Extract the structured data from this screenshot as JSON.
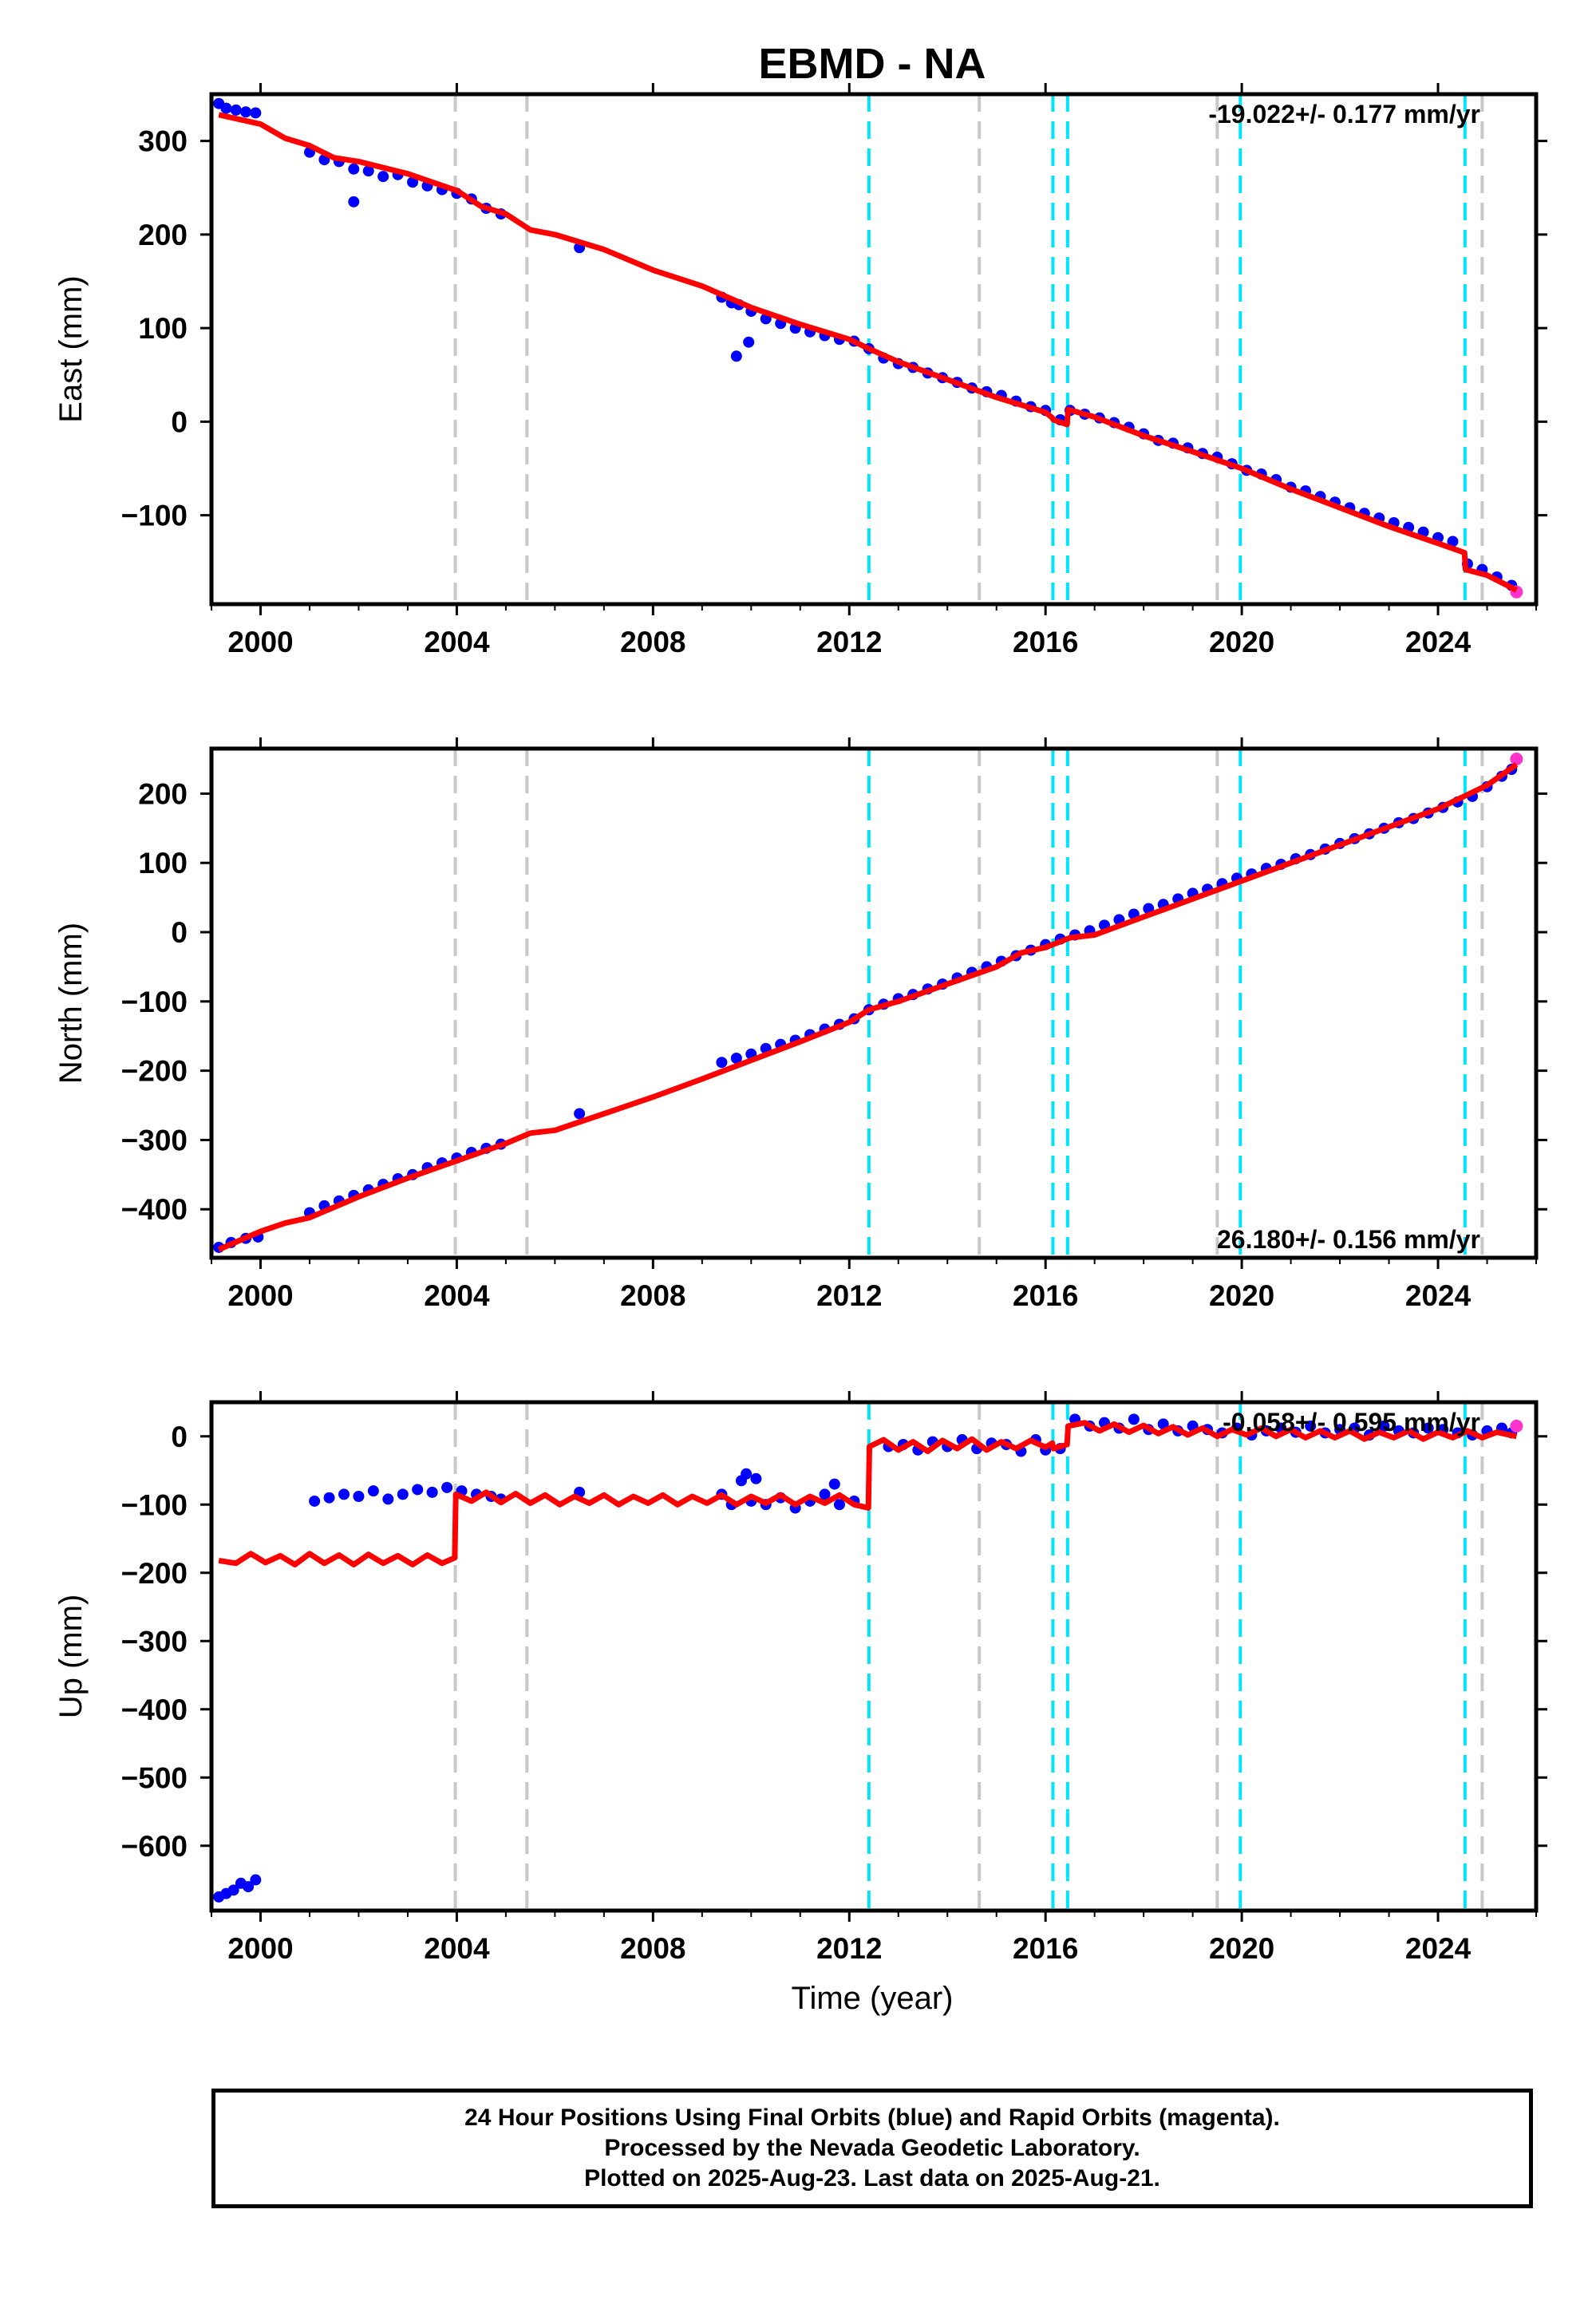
{
  "title": "EBMD - NA",
  "xlabel": "Time (year)",
  "colors": {
    "final_orbits": "#0000ff",
    "rapid_orbits": "#ff33cc",
    "model_fit": "#ff0000",
    "equipment_change": "#00e5ff",
    "other_offset": "#c8c8c8"
  },
  "chart_data": [
    {
      "type": "scatter",
      "panel": "east",
      "ylabel": "East (mm)",
      "xlim": [
        1999.0,
        2026.0
      ],
      "ylim": [
        -195,
        350
      ],
      "x_ticks": [
        2000,
        2004,
        2008,
        2012,
        2016,
        2020,
        2024
      ],
      "y_ticks": [
        300,
        200,
        100,
        0,
        -100
      ],
      "y_tick_labels": [
        "300",
        "200",
        "100",
        "0",
        "−100"
      ],
      "rate_annotation": "-19.022+/- 0.177 mm/yr",
      "rate_position": "top-right",
      "equipment_changes": [
        2012.4,
        2016.15,
        2016.45,
        2019.97,
        2024.55
      ],
      "other_offsets": [
        2003.97,
        2005.43,
        2014.65,
        2019.5,
        2024.9
      ],
      "series": [
        {
          "name": "Final Orbits",
          "color": "#0000ff",
          "x": [
            1999.15,
            1999.3,
            1999.5,
            1999.7,
            1999.9,
            2001.0,
            2001.3,
            2001.6,
            2001.9,
            2002.2,
            2002.5,
            2002.8,
            2003.1,
            2003.4,
            2003.7,
            2004.0,
            2004.3,
            2004.6,
            2004.9,
            2006.5,
            2009.4,
            2009.6,
            2009.75,
            2010.0,
            2010.3,
            2010.6,
            2010.9,
            2011.2,
            2011.5,
            2011.8,
            2012.1,
            2012.4,
            2012.7,
            2013.0,
            2013.3,
            2013.6,
            2013.9,
            2014.2,
            2014.5,
            2014.8,
            2015.1,
            2015.4,
            2015.7,
            2016.0,
            2016.3,
            2016.5,
            2016.8,
            2017.1,
            2017.4,
            2017.7,
            2018.0,
            2018.3,
            2018.6,
            2018.9,
            2019.2,
            2019.5,
            2019.8,
            2020.1,
            2020.4,
            2020.7,
            2021.0,
            2021.3,
            2021.6,
            2021.9,
            2022.2,
            2022.5,
            2022.8,
            2023.1,
            2023.4,
            2023.7,
            2024.0,
            2024.3,
            2024.6,
            2024.9,
            2025.2,
            2025.5
          ],
          "y": [
            340,
            335,
            333,
            331,
            330,
            288,
            280,
            278,
            270,
            268,
            262,
            264,
            256,
            252,
            248,
            244,
            238,
            228,
            222,
            186,
            133,
            127,
            125,
            118,
            110,
            105,
            100,
            96,
            92,
            88,
            86,
            78,
            68,
            62,
            58,
            52,
            47,
            42,
            36,
            32,
            28,
            22,
            16,
            12,
            2,
            12,
            8,
            4,
            -1,
            -6,
            -13,
            -20,
            -23,
            -28,
            -34,
            -38,
            -45,
            -52,
            -56,
            -62,
            -70,
            -74,
            -80,
            -86,
            -92,
            -98,
            -103,
            -108,
            -113,
            -118,
            -124,
            -128,
            -152,
            -158,
            -166,
            -175
          ]
        },
        {
          "name": "Final Orbits outliers",
          "color": "#0000ff",
          "x": [
            2001.9,
            2009.7,
            2009.95
          ],
          "y": [
            235,
            70,
            85
          ]
        },
        {
          "name": "Rapid Orbits",
          "color": "#ff33cc",
          "x": [
            2025.6
          ],
          "y": [
            -182
          ]
        },
        {
          "name": "Model",
          "color": "#ff0000",
          "x": [
            1999.15,
            2000.0,
            2000.5,
            2001.0,
            2001.5,
            2002.0,
            2003.0,
            2004.0,
            2004.5,
            2005.0,
            2005.5,
            2006.0,
            2007.0,
            2008.0,
            2009.0,
            2010.0,
            2011.0,
            2012.0,
            2012.4,
            2013.0,
            2014.0,
            2015.0,
            2016.0,
            2016.14,
            2016.16,
            2016.44,
            2016.46,
            2017.0,
            2018.0,
            2019.0,
            2020.0,
            2021.0,
            2022.0,
            2023.0,
            2024.0,
            2024.54,
            2024.56,
            2025.0,
            2025.6
          ],
          "y": [
            328,
            318,
            303,
            295,
            282,
            278,
            265,
            247,
            230,
            222,
            205,
            200,
            184,
            162,
            145,
            122,
            104,
            88,
            78,
            64,
            45,
            26,
            10,
            4,
            2,
            -3,
            13,
            5,
            -15,
            -32,
            -50,
            -72,
            -92,
            -112,
            -130,
            -140,
            -158,
            -164,
            -180
          ]
        }
      ]
    },
    {
      "type": "scatter",
      "panel": "north",
      "ylabel": "North (mm)",
      "xlim": [
        1999.0,
        2026.0
      ],
      "ylim": [
        -470,
        265
      ],
      "x_ticks": [
        2000,
        2004,
        2008,
        2012,
        2016,
        2020,
        2024
      ],
      "y_ticks": [
        200,
        100,
        0,
        -100,
        -200,
        -300,
        -400
      ],
      "y_tick_labels": [
        "200",
        "100",
        "0",
        "−100",
        "−200",
        "−300",
        "−400"
      ],
      "rate_annotation": "26.180+/- 0.156 mm/yr",
      "rate_position": "bottom-right",
      "equipment_changes": [
        2012.4,
        2016.15,
        2016.45,
        2019.97,
        2024.55
      ],
      "other_offsets": [
        2003.97,
        2005.43,
        2014.65,
        2019.5,
        2024.9
      ],
      "series": [
        {
          "name": "Final Orbits",
          "color": "#0000ff",
          "x": [
            1999.15,
            1999.4,
            1999.7,
            1999.95,
            2001.0,
            2001.3,
            2001.6,
            2001.9,
            2002.2,
            2002.5,
            2002.8,
            2003.1,
            2003.4,
            2003.7,
            2004.0,
            2004.3,
            2004.6,
            2004.9,
            2006.5,
            2009.4,
            2009.7,
            2010.0,
            2010.3,
            2010.6,
            2010.9,
            2011.2,
            2011.5,
            2011.8,
            2012.1,
            2012.4,
            2012.7,
            2013.0,
            2013.3,
            2013.6,
            2013.9,
            2014.2,
            2014.5,
            2014.8,
            2015.1,
            2015.4,
            2015.7,
            2016.0,
            2016.3,
            2016.6,
            2016.9,
            2017.2,
            2017.5,
            2017.8,
            2018.1,
            2018.4,
            2018.7,
            2019.0,
            2019.3,
            2019.6,
            2019.9,
            2020.2,
            2020.5,
            2020.8,
            2021.1,
            2021.4,
            2021.7,
            2022.0,
            2022.3,
            2022.6,
            2022.9,
            2023.2,
            2023.5,
            2023.8,
            2024.1,
            2024.4,
            2024.7,
            2025.0,
            2025.3,
            2025.5
          ],
          "y": [
            -455,
            -448,
            -442,
            -440,
            -405,
            -395,
            -388,
            -380,
            -372,
            -364,
            -356,
            -350,
            -340,
            -333,
            -326,
            -318,
            -312,
            -306,
            -262,
            -188,
            -182,
            -176,
            -168,
            -162,
            -156,
            -148,
            -140,
            -133,
            -125,
            -112,
            -104,
            -96,
            -90,
            -82,
            -75,
            -66,
            -58,
            -50,
            -42,
            -34,
            -26,
            -18,
            -10,
            -4,
            2,
            10,
            18,
            26,
            34,
            40,
            48,
            56,
            62,
            70,
            78,
            84,
            92,
            98,
            106,
            112,
            120,
            128,
            135,
            142,
            150,
            158,
            164,
            172,
            180,
            188,
            196,
            210,
            225,
            235
          ]
        },
        {
          "name": "Rapid Orbits",
          "color": "#ff33cc",
          "x": [
            2025.6
          ],
          "y": [
            250
          ]
        },
        {
          "name": "Model",
          "color": "#ff0000",
          "x": [
            1999.15,
            2000.0,
            2000.5,
            2001.0,
            2002.0,
            2003.0,
            2004.0,
            2005.0,
            2005.5,
            2006.0,
            2007.0,
            2008.0,
            2009.0,
            2010.0,
            2011.0,
            2012.0,
            2012.4,
            2013.0,
            2014.0,
            2015.0,
            2015.5,
            2016.0,
            2016.5,
            2017.0,
            2018.0,
            2019.0,
            2020.0,
            2021.0,
            2022.0,
            2023.0,
            2024.0,
            2025.0,
            2025.6
          ],
          "y": [
            -458,
            -432,
            -420,
            -412,
            -382,
            -355,
            -330,
            -305,
            -290,
            -286,
            -262,
            -238,
            -212,
            -185,
            -158,
            -130,
            -112,
            -100,
            -75,
            -50,
            -30,
            -22,
            -8,
            -4,
            22,
            48,
            74,
            100,
            126,
            152,
            178,
            212,
            242
          ]
        }
      ]
    },
    {
      "type": "scatter",
      "panel": "up",
      "ylabel": "Up (mm)",
      "xlim": [
        1999.0,
        2026.0
      ],
      "ylim": [
        -695,
        50
      ],
      "x_ticks": [
        2000,
        2004,
        2008,
        2012,
        2016,
        2020,
        2024
      ],
      "x_tick_labels": [
        "2000",
        "2004",
        "2008",
        "2012",
        "2016",
        "2020",
        "2024"
      ],
      "y_ticks": [
        0,
        -100,
        -200,
        -300,
        -400,
        -500,
        -600
      ],
      "y_tick_labels": [
        "0",
        "−100",
        "−200",
        "−300",
        "−400",
        "−500",
        "−600"
      ],
      "rate_annotation": "-0.058+/- 0.595 mm/yr",
      "rate_position": "top-right",
      "equipment_changes": [
        2012.4,
        2016.15,
        2016.45,
        2019.97,
        2024.55
      ],
      "other_offsets": [
        2003.97,
        2005.43,
        2014.65,
        2019.5,
        2024.9
      ],
      "series": [
        {
          "name": "Final Orbits",
          "color": "#0000ff",
          "x": [
            1999.15,
            1999.3,
            1999.45,
            1999.6,
            1999.75,
            1999.9,
            2001.1,
            2001.4,
            2001.7,
            2002.0,
            2002.3,
            2002.6,
            2002.9,
            2003.2,
            2003.5,
            2003.8,
            2004.1,
            2004.4,
            2004.7,
            2004.9,
            2006.5,
            2009.4,
            2009.6,
            2009.8,
            2010.0,
            2010.3,
            2010.6,
            2010.9,
            2011.2,
            2011.5,
            2011.8,
            2012.1,
            2012.8,
            2013.1,
            2013.4,
            2013.7,
            2014.0,
            2014.3,
            2014.6,
            2014.9,
            2015.2,
            2015.5,
            2015.8,
            2016.0,
            2016.3,
            2016.6,
            2016.9,
            2017.2,
            2017.5,
            2017.8,
            2018.1,
            2018.4,
            2018.7,
            2019.0,
            2019.3,
            2019.6,
            2019.9,
            2020.2,
            2020.5,
            2020.8,
            2021.1,
            2021.4,
            2021.7,
            2022.0,
            2022.3,
            2022.6,
            2022.9,
            2023.2,
            2023.5,
            2023.8,
            2024.1,
            2024.4,
            2024.7,
            2025.0,
            2025.3,
            2025.5
          ],
          "y": [
            -675,
            -670,
            -665,
            -655,
            -660,
            -650,
            -95,
            -90,
            -85,
            -88,
            -80,
            -92,
            -85,
            -78,
            -82,
            -75,
            -80,
            -85,
            -88,
            -92,
            -82,
            -85,
            -100,
            -65,
            -95,
            -100,
            -90,
            -105,
            -95,
            -85,
            -100,
            -95,
            -15,
            -12,
            -20,
            -8,
            -15,
            -5,
            -18,
            -10,
            -12,
            -22,
            -5,
            -20,
            -18,
            25,
            15,
            20,
            12,
            25,
            10,
            18,
            8,
            15,
            10,
            5,
            12,
            2,
            8,
            12,
            6,
            15,
            5,
            10,
            12,
            2,
            15,
            8,
            5,
            12,
            10,
            5,
            2,
            8,
            12,
            5
          ]
        },
        {
          "name": "Final Orbits outliers",
          "color": "#0000ff",
          "x": [
            2009.9,
            2010.1,
            2011.7
          ],
          "y": [
            -55,
            -62,
            -70
          ]
        },
        {
          "name": "Rapid Orbits",
          "color": "#ff33cc",
          "x": [
            2025.6
          ],
          "y": [
            15
          ]
        },
        {
          "name": "Model",
          "color": "#ff0000",
          "x": [
            1999.15,
            1999.5,
            1999.8,
            2000.1,
            2000.4,
            2000.7,
            2001.0,
            2001.3,
            2001.6,
            2001.9,
            2002.2,
            2002.5,
            2002.8,
            2003.1,
            2003.4,
            2003.7,
            2003.96,
            2003.98,
            2004.3,
            2004.6,
            2004.9,
            2005.2,
            2005.5,
            2005.8,
            2006.1,
            2006.4,
            2006.7,
            2007.0,
            2007.3,
            2007.6,
            2007.9,
            2008.2,
            2008.5,
            2008.8,
            2009.1,
            2009.4,
            2009.7,
            2010.0,
            2010.3,
            2010.6,
            2010.9,
            2011.2,
            2011.5,
            2011.8,
            2012.1,
            2012.39,
            2012.41,
            2012.7,
            2013.0,
            2013.3,
            2013.6,
            2013.9,
            2014.2,
            2014.5,
            2014.8,
            2015.1,
            2015.4,
            2015.7,
            2016.0,
            2016.14,
            2016.16,
            2016.44,
            2016.46,
            2016.8,
            2017.1,
            2017.4,
            2017.7,
            2018.0,
            2018.3,
            2018.6,
            2018.9,
            2019.2,
            2019.5,
            2019.8,
            2020.1,
            2020.4,
            2020.7,
            2021.0,
            2021.3,
            2021.6,
            2021.9,
            2022.2,
            2022.5,
            2022.8,
            2023.1,
            2023.4,
            2023.7,
            2024.0,
            2024.3,
            2024.6,
            2024.9,
            2025.2,
            2025.6
          ],
          "y": [
            -182,
            -186,
            -172,
            -185,
            -175,
            -188,
            -172,
            -186,
            -174,
            -188,
            -173,
            -186,
            -175,
            -188,
            -174,
            -186,
            -178,
            -85,
            -95,
            -82,
            -97,
            -84,
            -98,
            -86,
            -100,
            -88,
            -98,
            -86,
            -100,
            -88,
            -98,
            -86,
            -100,
            -88,
            -98,
            -86,
            -100,
            -88,
            -98,
            -86,
            -100,
            -88,
            -98,
            -86,
            -100,
            -105,
            -15,
            -5,
            -20,
            -8,
            -22,
            -6,
            -18,
            -4,
            -20,
            -8,
            -18,
            -6,
            -16,
            -10,
            -18,
            -12,
            15,
            20,
            8,
            18,
            6,
            16,
            4,
            14,
            2,
            12,
            0,
            10,
            2,
            12,
            0,
            10,
            -2,
            8,
            -2,
            8,
            -4,
            6,
            -2,
            8,
            -4,
            6,
            -2,
            8,
            -2,
            6,
            0
          ]
        }
      ]
    }
  ],
  "footer": {
    "line1": "24 Hour Positions Using Final Orbits (blue) and Rapid Orbits (magenta).",
    "line2": "Processed by the Nevada Geodetic Laboratory.",
    "line3": "Plotted on 2025-Aug-23. Last data on 2025-Aug-21."
  }
}
